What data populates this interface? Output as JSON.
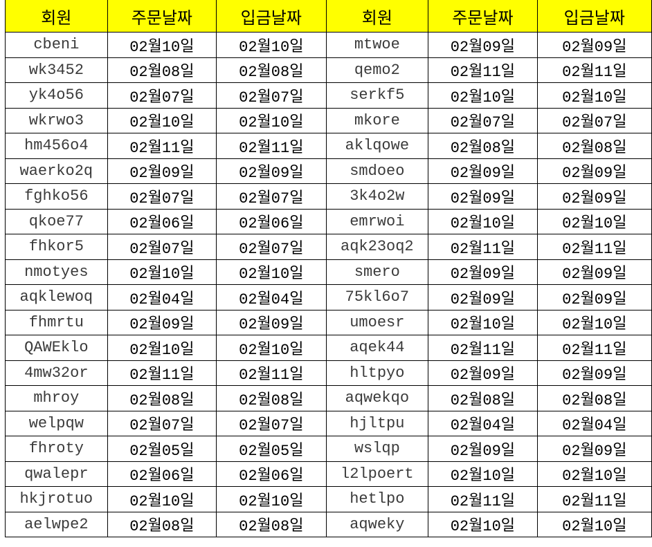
{
  "headers": [
    "회원",
    "주문날짜",
    "입금날짜",
    "회원",
    "주문날짜",
    "입금날짜"
  ],
  "header_color": "#ffff00",
  "rows": [
    [
      "cbeni",
      "02월10일",
      "02월10일",
      "mtwoe",
      "02월09일",
      "02월09일"
    ],
    [
      "wk3452",
      "02월08일",
      "02월08일",
      "qemo2",
      "02월11일",
      "02월11일"
    ],
    [
      "yk4o56",
      "02월07일",
      "02월07일",
      "serkf5",
      "02월10일",
      "02월10일"
    ],
    [
      "wkrwo3",
      "02월10일",
      "02월10일",
      "mkore",
      "02월07일",
      "02월07일"
    ],
    [
      "hm456o4",
      "02월11일",
      "02월11일",
      "aklqowe",
      "02월08일",
      "02월08일"
    ],
    [
      "waerko2q",
      "02월09일",
      "02월09일",
      "smdoeo",
      "02월09일",
      "02월09일"
    ],
    [
      "fghko56",
      "02월07일",
      "02월07일",
      "3k4o2w",
      "02월09일",
      "02월09일"
    ],
    [
      "qkoe77",
      "02월06일",
      "02월06일",
      "emrwoi",
      "02월10일",
      "02월10일"
    ],
    [
      "fhkor5",
      "02월07일",
      "02월07일",
      "aqk23oq2",
      "02월11일",
      "02월11일"
    ],
    [
      "nmotyes",
      "02월10일",
      "02월10일",
      "smero",
      "02월09일",
      "02월09일"
    ],
    [
      "aqklewoq",
      "02월04일",
      "02월04일",
      "75kl6o7",
      "02월09일",
      "02월09일"
    ],
    [
      "fhmrtu",
      "02월09일",
      "02월09일",
      "umoesr",
      "02월10일",
      "02월10일"
    ],
    [
      "QAWEklo",
      "02월10일",
      "02월10일",
      "aqek44",
      "02월11일",
      "02월11일"
    ],
    [
      "4mw32or",
      "02월11일",
      "02월11일",
      "hltpyo",
      "02월09일",
      "02월09일"
    ],
    [
      "mhroy",
      "02월08일",
      "02월08일",
      "aqwekqo",
      "02월08일",
      "02월08일"
    ],
    [
      "welpqw",
      "02월07일",
      "02월07일",
      "hjltpu",
      "02월04일",
      "02월04일"
    ],
    [
      "fhroty",
      "02월05일",
      "02월05일",
      "wslqp",
      "02월09일",
      "02월09일"
    ],
    [
      "qwalepr",
      "02월06일",
      "02월06일",
      "l2lpoert",
      "02월10일",
      "02월10일"
    ],
    [
      "hkjrotuo",
      "02월10일",
      "02월10일",
      "hetlpo",
      "02월11일",
      "02월11일"
    ],
    [
      "aelwpe2",
      "02월08일",
      "02월08일",
      "aqweky",
      "02월10일",
      "02월10일"
    ]
  ]
}
